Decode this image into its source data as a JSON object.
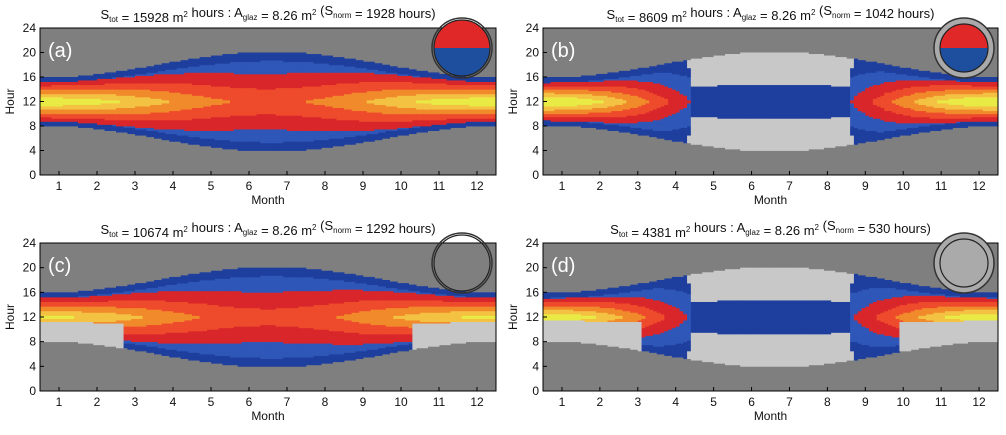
{
  "colors": {
    "night": "#7f7f7f",
    "daylight": "#c8c8c8",
    "sun_scale": [
      "#1e3f9e",
      "#2e57b8",
      "#d9262a",
      "#ee4a2c",
      "#f08a2a",
      "#f4c243",
      "#e9ea45"
    ],
    "inset_top": "#e02828",
    "inset_bottom": "#1e4f9e",
    "inset_green": "#6ab33e"
  },
  "chart_data": [
    {
      "type": "heatmap",
      "panel_label": "(a)",
      "title": "S_tot = 15928 m² hours : A_glaz = 8.26 m² (S_norm = 1928 hours)",
      "title_parts": {
        "stot": "15928",
        "aglaz": "8.26",
        "snorm": "1928"
      },
      "xlabel": "Month",
      "ylabel": "Hour",
      "x_ticks": [
        "1",
        "2",
        "3",
        "4",
        "5",
        "6",
        "7",
        "8",
        "9",
        "10",
        "11",
        "12"
      ],
      "y_ticks": [
        "0",
        "4",
        "8",
        "12",
        "16",
        "20",
        "24"
      ],
      "xlim": [
        0.5,
        12.5
      ],
      "ylim": [
        0,
        24
      ],
      "inset_icon": "sphere-half-red-blue-icon",
      "profile": "full"
    },
    {
      "type": "heatmap",
      "panel_label": "(b)",
      "title": "S_tot = 8609 m² hours : A_glaz = 8.26 m² (S_norm = 1042 hours)",
      "title_parts": {
        "stot": "8609",
        "aglaz": "8.26",
        "snorm": "1042"
      },
      "xlabel": "Month",
      "ylabel": "Hour",
      "x_ticks": [
        "1",
        "2",
        "3",
        "4",
        "5",
        "6",
        "7",
        "8",
        "9",
        "10",
        "11",
        "12"
      ],
      "y_ticks": [
        "0",
        "4",
        "8",
        "12",
        "16",
        "20",
        "24"
      ],
      "xlim": [
        0.5,
        12.5
      ],
      "ylim": [
        0,
        24
      ],
      "inset_icon": "sphere-top-red-cap-icon",
      "profile": "winter"
    },
    {
      "type": "heatmap",
      "panel_label": "(c)",
      "title": "S_tot = 10674 m² hours : A_glaz = 8.26 m² (S_norm = 1292 hours)",
      "title_parts": {
        "stot": "10674",
        "aglaz": "8.26",
        "snorm": "1292"
      },
      "xlabel": "Month",
      "ylabel": "Hour",
      "x_ticks": [
        "1",
        "2",
        "3",
        "4",
        "5",
        "6",
        "7",
        "8",
        "9",
        "10",
        "11",
        "12"
      ],
      "y_ticks": [
        "0",
        "4",
        "8",
        "12",
        "16",
        "20",
        "24"
      ],
      "xlim": [
        0.5,
        12.5
      ],
      "ylim": [
        0,
        24
      ],
      "inset_icon": "sphere-green-window-icon",
      "profile": "partial"
    },
    {
      "type": "heatmap",
      "panel_label": "(d)",
      "title": "S_tot = 4381 m² hours : A_glaz = 8.26 m² (S_norm = 530 hours)",
      "title_parts": {
        "stot": "4381",
        "aglaz": "8.26",
        "snorm": "530"
      },
      "xlabel": "Month",
      "ylabel": "Hour",
      "x_ticks": [
        "1",
        "2",
        "3",
        "4",
        "5",
        "6",
        "7",
        "8",
        "9",
        "10",
        "11",
        "12"
      ],
      "y_ticks": [
        "0",
        "4",
        "8",
        "12",
        "16",
        "20",
        "24"
      ],
      "xlim": [
        0.5,
        12.5
      ],
      "ylim": [
        0,
        24
      ],
      "inset_icon": "sphere-green-window-framed-icon",
      "profile": "partial-winter"
    }
  ]
}
